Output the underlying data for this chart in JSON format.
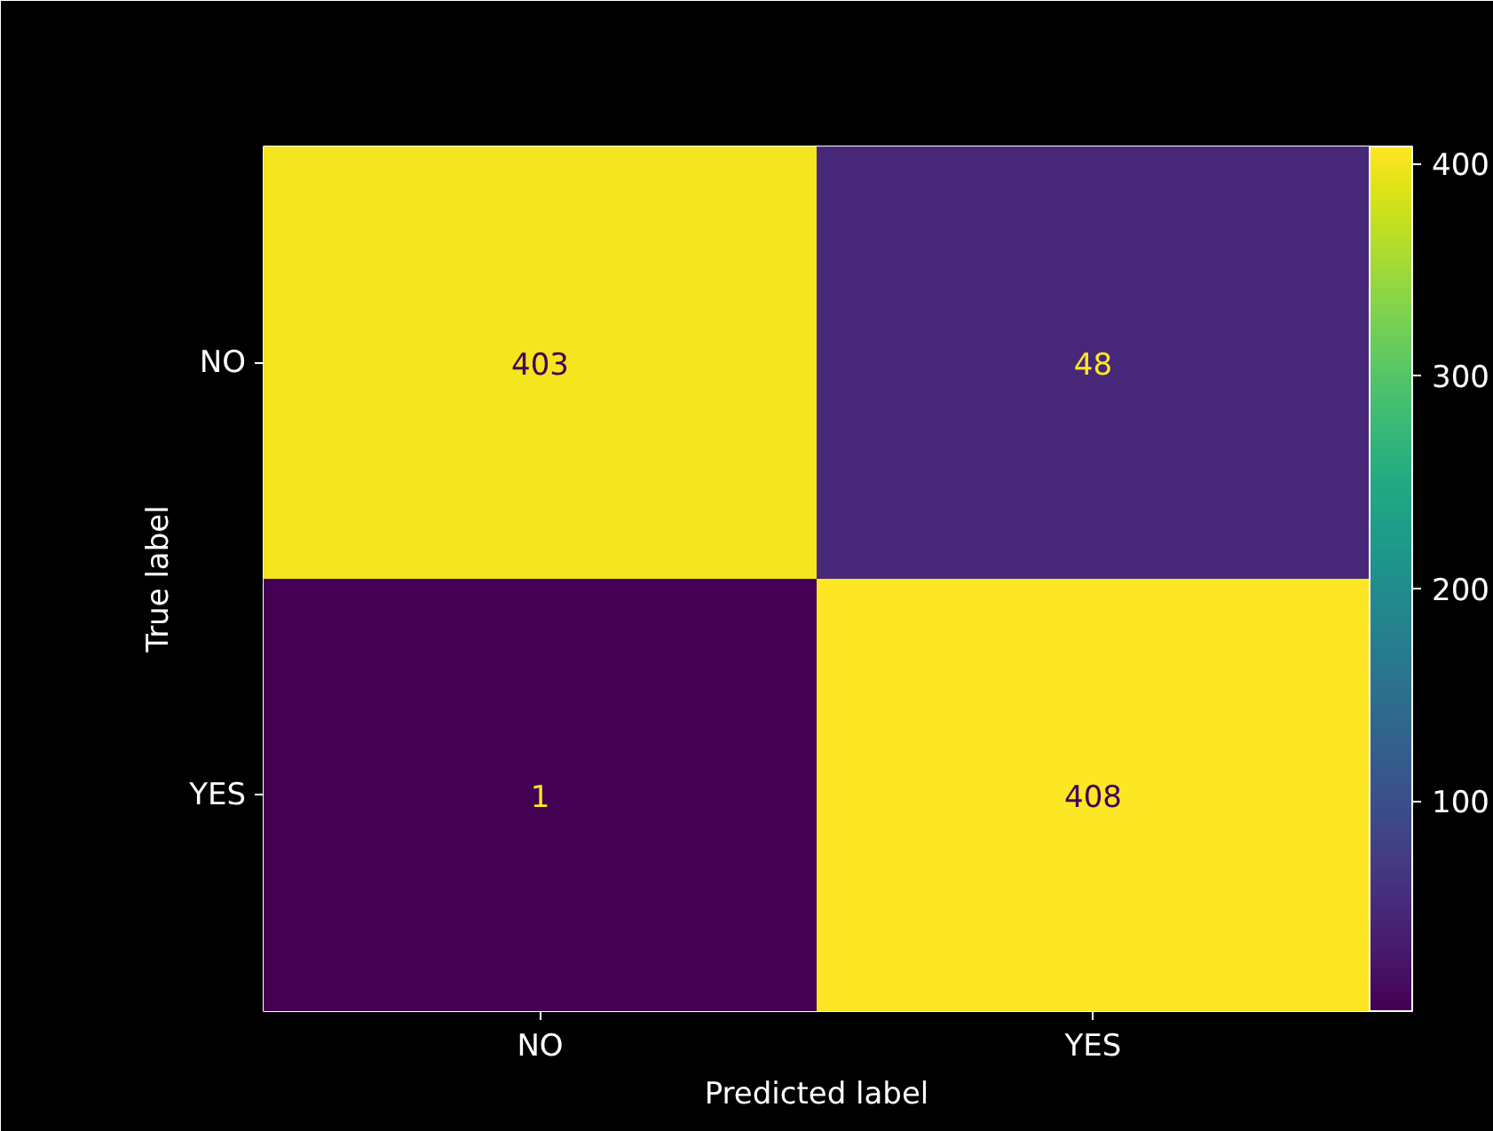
{
  "chart_data": {
    "type": "heatmap",
    "xlabel": "Predicted label",
    "ylabel": "True label",
    "categories": [
      "NO",
      "YES"
    ],
    "y_categories": [
      "NO",
      "YES"
    ],
    "cells": [
      [
        403,
        48
      ],
      [
        1,
        408
      ]
    ],
    "clim": [
      1,
      408
    ],
    "cticks": [
      100,
      200,
      300,
      400
    ],
    "data_labels": true
  }
}
